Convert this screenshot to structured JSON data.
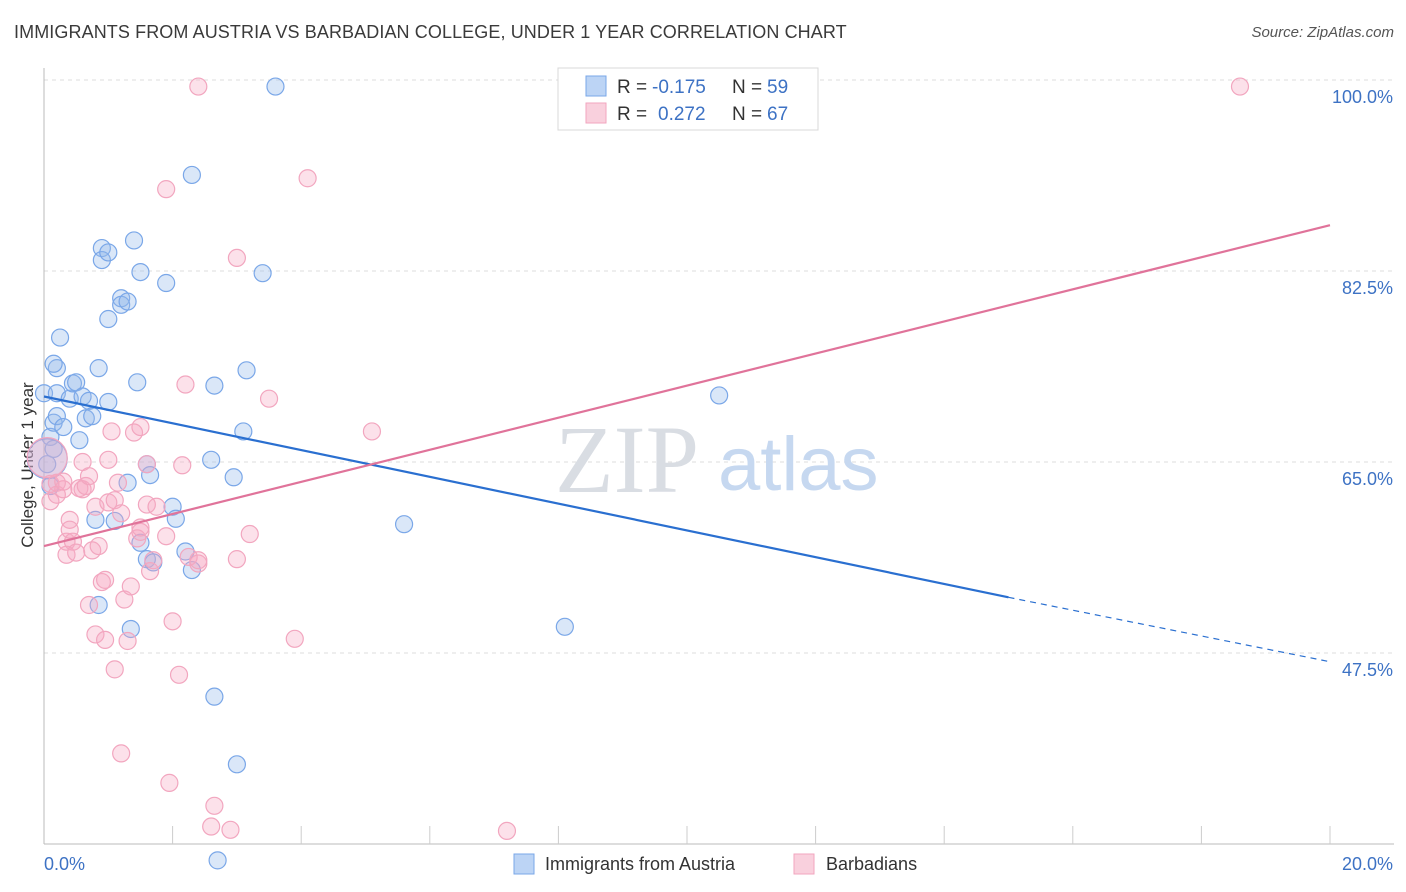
{
  "chart_data": {
    "type": "scatter",
    "title": "IMMIGRANTS FROM AUSTRIA VS BARBADIAN COLLEGE, UNDER 1 YEAR CORRELATION CHART",
    "source": "Source: ZipAtlas.com",
    "ylabel": "College, Under 1 year",
    "xlabel": "",
    "xlim": [
      0,
      20
    ],
    "ylim": [
      30,
      100
    ],
    "x_tick_labels": [
      "0.0%",
      "20.0%"
    ],
    "y_ticks": [
      {
        "value": 100.0,
        "label": "100.0%"
      },
      {
        "value": 82.5,
        "label": "82.5%"
      },
      {
        "value": 65.0,
        "label": "65.0%"
      },
      {
        "value": 47.5,
        "label": "47.5%"
      }
    ],
    "watermark": {
      "zip": "ZIP",
      "atlas": "atlas"
    },
    "legend": {
      "entries": [
        {
          "r_label": "R =",
          "r_value": "-0.175",
          "n_label": "N =",
          "n_value": "59"
        },
        {
          "r_label": "R =",
          "r_value": "0.272",
          "n_label": "N =",
          "n_value": "67"
        }
      ]
    },
    "series": [
      {
        "name": "Immigrants from Austria",
        "color": "#7aa7e8",
        "line_color": "#2a6fd0",
        "trend": {
          "x0": 0,
          "y0": 71.0,
          "x1": 15.0,
          "y1": 52.6,
          "x_dash_end": 20.0,
          "y_dash_end": 46.7
        },
        "points": [
          [
            0.0,
            71.3
          ],
          [
            0.05,
            64.8
          ],
          [
            0.1,
            67.3
          ],
          [
            0.1,
            62.8
          ],
          [
            0.15,
            68.6
          ],
          [
            0.15,
            66.2
          ],
          [
            0.2,
            71.3
          ],
          [
            0.2,
            73.6
          ],
          [
            0.2,
            69.2
          ],
          [
            0.25,
            76.4
          ],
          [
            0.3,
            68.2
          ],
          [
            0.4,
            70.8
          ],
          [
            0.45,
            72.2
          ],
          [
            0.5,
            72.3
          ],
          [
            0.55,
            67.0
          ],
          [
            0.6,
            71.0
          ],
          [
            0.65,
            69.0
          ],
          [
            0.7,
            70.6
          ],
          [
            0.75,
            69.2
          ],
          [
            0.8,
            59.7
          ],
          [
            0.85,
            73.6
          ],
          [
            0.85,
            51.9
          ],
          [
            0.9,
            84.6
          ],
          [
            0.9,
            83.5
          ],
          [
            1.0,
            84.2
          ],
          [
            1.0,
            78.1
          ],
          [
            1.0,
            70.5
          ],
          [
            1.1,
            59.6
          ],
          [
            1.2,
            80.0
          ],
          [
            1.2,
            79.4
          ],
          [
            1.3,
            79.7
          ],
          [
            1.3,
            63.1
          ],
          [
            1.35,
            49.7
          ],
          [
            1.4,
            85.3
          ],
          [
            1.45,
            72.3
          ],
          [
            1.5,
            82.4
          ],
          [
            1.5,
            57.6
          ],
          [
            1.6,
            56.1
          ],
          [
            1.6,
            64.8
          ],
          [
            1.65,
            63.8
          ],
          [
            1.7,
            55.8
          ],
          [
            1.9,
            81.4
          ],
          [
            2.0,
            60.9
          ],
          [
            2.05,
            59.8
          ],
          [
            2.2,
            56.8
          ],
          [
            2.3,
            55.1
          ],
          [
            2.3,
            91.3
          ],
          [
            2.6,
            65.2
          ],
          [
            2.65,
            72.0
          ],
          [
            2.65,
            43.5
          ],
          [
            2.7,
            28.5
          ],
          [
            2.95,
            63.6
          ],
          [
            3.0,
            37.3
          ],
          [
            3.1,
            67.8
          ],
          [
            3.15,
            73.4
          ],
          [
            3.4,
            82.3
          ],
          [
            3.6,
            99.4
          ],
          [
            5.6,
            59.3
          ],
          [
            8.1,
            49.9
          ],
          [
            10.5,
            71.1
          ],
          [
            0.15,
            74.0
          ]
        ],
        "big_point": [
          0.05,
          65.3
        ]
      },
      {
        "name": "Barbadians",
        "color": "#f2a6bf",
        "line_color": "#e0739a",
        "trend": {
          "x0": 0,
          "y0": 57.3,
          "x1": 20.0,
          "y1": 86.7
        },
        "points": [
          [
            0.1,
            63.0
          ],
          [
            0.1,
            61.4
          ],
          [
            0.2,
            62.0
          ],
          [
            0.2,
            63.1
          ],
          [
            0.3,
            62.5
          ],
          [
            0.3,
            63.2
          ],
          [
            0.35,
            56.5
          ],
          [
            0.35,
            57.7
          ],
          [
            0.4,
            59.7
          ],
          [
            0.4,
            58.8
          ],
          [
            0.45,
            57.7
          ],
          [
            0.5,
            56.7
          ],
          [
            0.55,
            62.6
          ],
          [
            0.6,
            65.0
          ],
          [
            0.6,
            62.5
          ],
          [
            0.65,
            62.8
          ],
          [
            0.7,
            63.7
          ],
          [
            0.7,
            51.9
          ],
          [
            0.75,
            56.9
          ],
          [
            0.8,
            60.9
          ],
          [
            0.8,
            49.2
          ],
          [
            0.85,
            57.3
          ],
          [
            0.9,
            54.0
          ],
          [
            0.95,
            54.2
          ],
          [
            0.95,
            48.7
          ],
          [
            1.0,
            61.3
          ],
          [
            1.0,
            65.2
          ],
          [
            1.05,
            67.8
          ],
          [
            1.1,
            46.0
          ],
          [
            1.1,
            61.5
          ],
          [
            1.15,
            63.1
          ],
          [
            1.2,
            60.3
          ],
          [
            1.2,
            38.3
          ],
          [
            1.25,
            52.4
          ],
          [
            1.3,
            48.6
          ],
          [
            1.35,
            53.6
          ],
          [
            1.4,
            67.7
          ],
          [
            1.45,
            58.0
          ],
          [
            1.5,
            68.2
          ],
          [
            1.5,
            58.6
          ],
          [
            1.5,
            59.0
          ],
          [
            1.6,
            64.8
          ],
          [
            1.6,
            61.1
          ],
          [
            1.65,
            55.0
          ],
          [
            1.7,
            56.0
          ],
          [
            1.75,
            60.9
          ],
          [
            1.9,
            58.2
          ],
          [
            1.9,
            90.0
          ],
          [
            1.95,
            35.6
          ],
          [
            2.0,
            50.4
          ],
          [
            2.1,
            45.5
          ],
          [
            2.15,
            64.7
          ],
          [
            2.2,
            72.1
          ],
          [
            2.25,
            56.3
          ],
          [
            2.4,
            55.7
          ],
          [
            2.4,
            56.0
          ],
          [
            2.4,
            99.4
          ],
          [
            2.6,
            31.6
          ],
          [
            2.65,
            33.5
          ],
          [
            2.9,
            31.3
          ],
          [
            3.0,
            83.7
          ],
          [
            3.0,
            56.1
          ],
          [
            3.2,
            58.4
          ],
          [
            3.5,
            70.8
          ],
          [
            3.9,
            48.8
          ],
          [
            4.1,
            91.0
          ],
          [
            5.1,
            67.8
          ],
          [
            7.2,
            31.2
          ],
          [
            18.6,
            99.4
          ]
        ],
        "big_point": [
          0.05,
          65.4
        ]
      }
    ]
  },
  "bottom_legend": {
    "items": [
      {
        "label": "Immigrants from Austria",
        "color": "#bcd4f5",
        "stroke": "#7aa7e8"
      },
      {
        "label": "Barbadians",
        "color": "#f9d0dd",
        "stroke": "#f2a6bf"
      }
    ]
  }
}
